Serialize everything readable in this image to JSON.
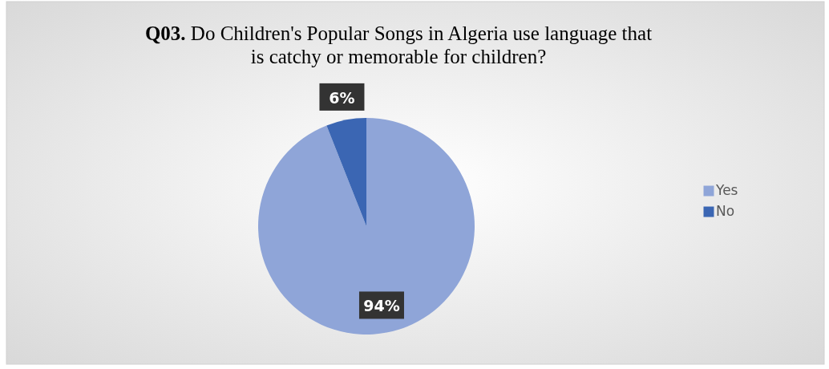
{
  "chart_data": {
    "type": "pie",
    "title": "Q03. Do Children's Popular Songs in Algeria use language that is catchy or memorable for children?",
    "categories": [
      "Yes",
      "No"
    ],
    "values": [
      94,
      6
    ],
    "colors": [
      "#8fa5d8",
      "#3b66b3"
    ],
    "value_labels": [
      "94%",
      "6%"
    ],
    "legend": "right"
  }
}
